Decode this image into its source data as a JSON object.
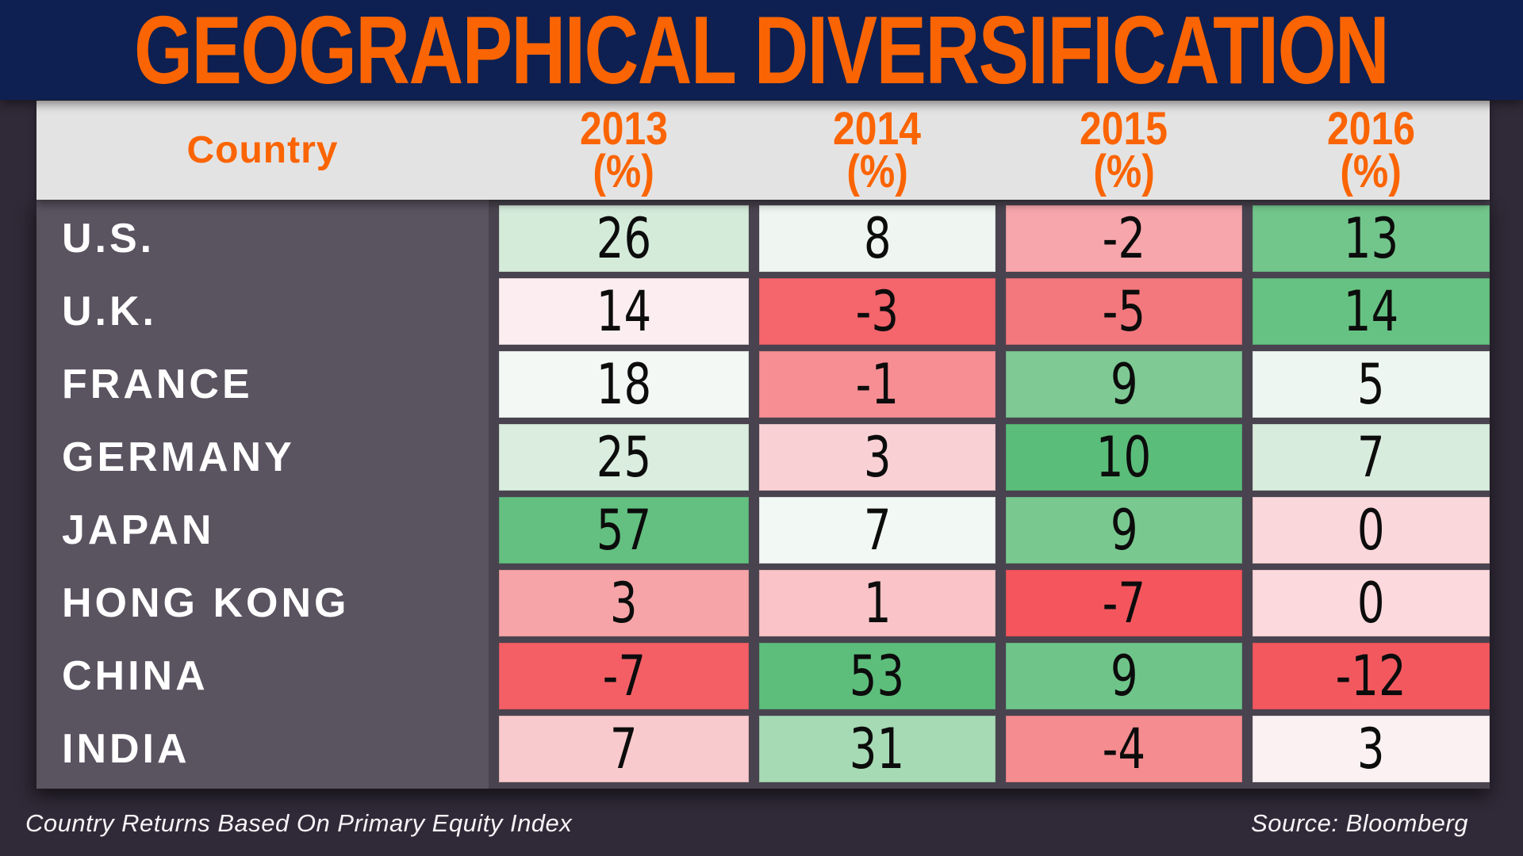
{
  "title": "GEOGRAPHICAL DIVERSIFICATION",
  "header": {
    "country_label": "Country",
    "year_columns": [
      {
        "year": "2013",
        "unit": "(%)"
      },
      {
        "year": "2014",
        "unit": "(%)"
      },
      {
        "year": "2015",
        "unit": "(%)"
      },
      {
        "year": "2016",
        "unit": "(%)"
      }
    ]
  },
  "chart_data": {
    "type": "table",
    "title": "GEOGRAPHICAL DIVERSIFICATION",
    "columns": [
      "Country",
      "2013 (%)",
      "2014 (%)",
      "2015 (%)",
      "2016 (%)"
    ],
    "rows": [
      {
        "country": "U.S.",
        "values": [
          26,
          8,
          -2,
          13
        ],
        "cell_colors": [
          "#d5ebda",
          "#eff6f1",
          "#f7a6ab",
          "#72c68c"
        ]
      },
      {
        "country": "U.K.",
        "values": [
          14,
          -3,
          -5,
          14
        ],
        "cell_colors": [
          "#fbedf0",
          "#f5656c",
          "#f2787d",
          "#66c282"
        ]
      },
      {
        "country": "FRANCE",
        "values": [
          18,
          -1,
          9,
          5
        ],
        "cell_colors": [
          "#f3f8f5",
          "#f68e93",
          "#7ec994",
          "#eef6f1"
        ]
      },
      {
        "country": "GERMANY",
        "values": [
          25,
          3,
          10,
          7
        ],
        "cell_colors": [
          "#daedde",
          "#f9d1d5",
          "#5bbd7a",
          "#d8ecdd"
        ]
      },
      {
        "country": "JAPAN",
        "values": [
          57,
          7,
          9,
          0
        ],
        "cell_colors": [
          "#63c080",
          "#f2f8f4",
          "#79c890",
          "#fad7da"
        ]
      },
      {
        "country": "HONG KONG",
        "values": [
          3,
          1,
          -7,
          0
        ],
        "cell_colors": [
          "#f6a4a8",
          "#f9c3c7",
          "#f5565d",
          "#fbd9dc"
        ]
      },
      {
        "country": "CHINA",
        "values": [
          -7,
          53,
          9,
          -12
        ],
        "cell_colors": [
          "#f45f66",
          "#5dbe7c",
          "#6fc48a",
          "#f4585f"
        ]
      },
      {
        "country": "INDIA",
        "values": [
          7,
          31,
          -4,
          3
        ],
        "cell_colors": [
          "#f9cacd",
          "#a6dab5",
          "#f58c90",
          "#fbf1f3"
        ]
      }
    ],
    "footnote": "Country Returns Based On Primary Equity Index",
    "source": "Source: Bloomberg"
  },
  "footer": {
    "footnote": "Country Returns Based On Primary Equity Index",
    "source": "Source: Bloomberg"
  },
  "colors": {
    "title_bg_navy": "#0e2052",
    "accent_orange": "#fb6402",
    "page_bg": "#302a38",
    "table_gap_bg": "#49434f",
    "country_column_bg": "#5a5360",
    "header_band_bg": "#e4e3e3",
    "cell_text": "#0c0c0c",
    "label_text": "#ffffff"
  }
}
